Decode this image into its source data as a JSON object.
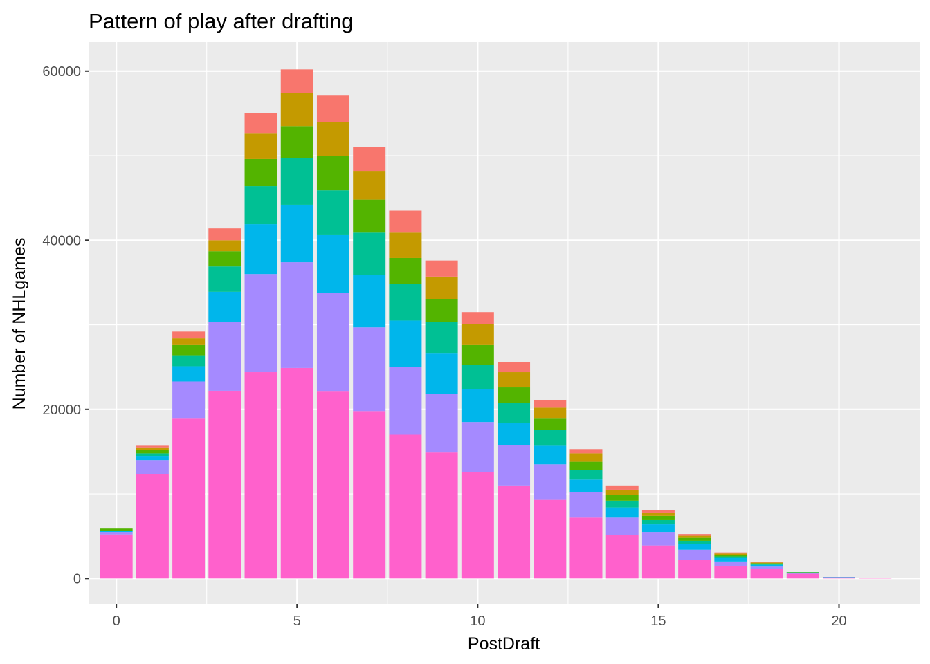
{
  "chart_data": {
    "type": "bar",
    "stacked": true,
    "title": "Pattern of play after drafting",
    "xlabel": "PostDraft",
    "ylabel": "Number of NHLgames",
    "x_ticks": [
      0,
      5,
      10,
      15,
      20
    ],
    "y_ticks": [
      0,
      20000,
      40000,
      60000
    ],
    "xlim": [
      -0.75,
      22.25
    ],
    "ylim": [
      -3000,
      63500
    ],
    "grid": true,
    "legend": "none",
    "x": [
      0,
      1,
      2,
      3,
      4,
      5,
      6,
      7,
      8,
      9,
      10,
      11,
      12,
      13,
      14,
      15,
      16,
      17,
      18,
      19,
      20,
      21
    ],
    "series_order_bottom_to_top": [
      "s1",
      "s2",
      "s3",
      "s4",
      "s5",
      "s6",
      "s7"
    ],
    "series": [
      {
        "id": "s1",
        "color": "#FF61CC",
        "values": [
          5200,
          12300,
          18900,
          22200,
          24400,
          24900,
          22100,
          19800,
          17000,
          14900,
          12600,
          11000,
          9300,
          7200,
          5100,
          3900,
          2200,
          1500,
          1100,
          550,
          150,
          60
        ]
      },
      {
        "id": "s2",
        "color": "#A58AFF",
        "values": [
          300,
          1700,
          4400,
          8100,
          11600,
          12500,
          11700,
          9900,
          8000,
          6900,
          5900,
          4800,
          4200,
          3000,
          2100,
          1600,
          1200,
          500,
          300,
          100,
          0,
          0
        ]
      },
      {
        "id": "s3",
        "color": "#00B6EB",
        "values": [
          100,
          500,
          1800,
          3600,
          5900,
          6800,
          6800,
          6200,
          5500,
          4800,
          3900,
          2600,
          2200,
          1500,
          1200,
          900,
          700,
          400,
          200,
          50,
          30,
          20
        ]
      },
      {
        "id": "s4",
        "color": "#00C094",
        "values": [
          50,
          300,
          1300,
          3000,
          4500,
          5500,
          5300,
          5000,
          4300,
          3700,
          2900,
          2400,
          1900,
          1100,
          800,
          500,
          350,
          200,
          100,
          30,
          0,
          0
        ]
      },
      {
        "id": "s5",
        "color": "#53B400",
        "values": [
          250,
          400,
          1200,
          1800,
          3200,
          3800,
          4100,
          3900,
          3100,
          2700,
          2300,
          1800,
          1300,
          1000,
          700,
          500,
          350,
          200,
          100,
          20,
          0,
          0
        ]
      },
      {
        "id": "s6",
        "color": "#C49A00",
        "values": [
          0,
          300,
          800,
          1300,
          3000,
          3900,
          4000,
          3400,
          3000,
          2700,
          2500,
          1800,
          1300,
          1000,
          600,
          400,
          250,
          150,
          80,
          0,
          0,
          0
        ]
      },
      {
        "id": "s7",
        "color": "#F8766D",
        "values": [
          0,
          200,
          800,
          1400,
          2400,
          2800,
          3100,
          2800,
          2600,
          1900,
          1400,
          1200,
          900,
          500,
          500,
          300,
          200,
          130,
          100,
          0,
          0,
          0
        ]
      }
    ]
  }
}
